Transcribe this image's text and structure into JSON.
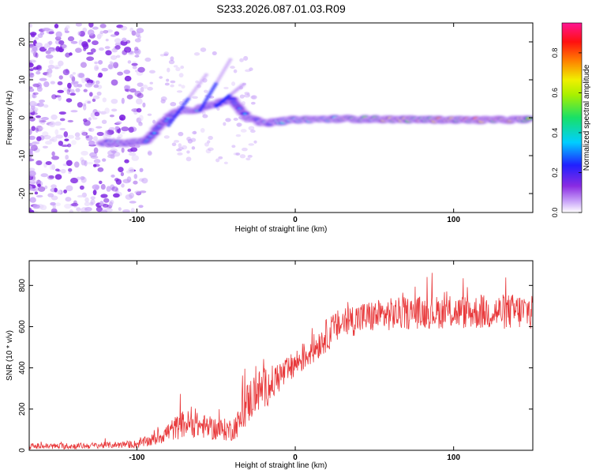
{
  "figure_title": "S233.2026.087.01.03.R09",
  "colors": {
    "snr_line": "#e8383a",
    "colormap": [
      "#ffffff",
      "#c8a2f8",
      "#7b1fe0",
      "#2020ff",
      "#00cfff",
      "#18e068",
      "#f0f000",
      "#ff8000",
      "#ff1010",
      "#ff1493"
    ]
  },
  "chart_data": [
    {
      "type": "heatmap",
      "title": "S233.2026.087.01.03.R09",
      "xlabel": "Height of straight line (km)",
      "ylabel": "Frequency (Hz)",
      "xlim": [
        -168,
        150
      ],
      "ylim": [
        -25,
        25
      ],
      "x_ticks": [
        -100,
        0,
        100
      ],
      "x_tick_labels": [
        "-100",
        "0",
        "100"
      ],
      "y_ticks": [
        -20,
        -10,
        0,
        10,
        20
      ],
      "y_tick_labels": [
        "-20",
        "-10",
        "0",
        "10",
        "20"
      ],
      "colorbar": {
        "label": "Normalized spectral amplitude",
        "range": [
          0,
          0.95
        ],
        "ticks": [
          0.0,
          0.2,
          0.4,
          0.6,
          0.8
        ],
        "tick_labels": [
          "0.0",
          "0.2",
          "0.4",
          "0.6",
          "0.8"
        ]
      },
      "features": {
        "noise_region_x": [
          -168,
          -95
        ],
        "main_trace": [
          {
            "x": -122,
            "freq": -6.5,
            "amp": 0.3
          },
          {
            "x": -110,
            "freq": -6.8,
            "amp": 0.35
          },
          {
            "x": -95,
            "freq": -6.2,
            "amp": 0.3
          },
          {
            "x": -85,
            "freq": -2.0,
            "amp": 0.22
          },
          {
            "x": -75,
            "freq": 2.0,
            "amp": 0.25
          },
          {
            "x": -65,
            "freq": 2.0,
            "amp": 0.35
          },
          {
            "x": -55,
            "freq": 3.0,
            "amp": 0.3
          },
          {
            "x": -40,
            "freq": 5.0,
            "amp": 0.22
          },
          {
            "x": -30,
            "freq": 0.0,
            "amp": 0.25
          },
          {
            "x": -20,
            "freq": -1.5,
            "amp": 0.3
          },
          {
            "x": -10,
            "freq": -1.0,
            "amp": 0.45
          },
          {
            "x": 0,
            "freq": -0.5,
            "amp": 0.5
          },
          {
            "x": 30,
            "freq": -0.3,
            "amp": 0.6
          },
          {
            "x": 80,
            "freq": -0.5,
            "amp": 0.75
          },
          {
            "x": 120,
            "freq": -0.6,
            "amp": 0.85
          },
          {
            "x": 148,
            "freq": -0.5,
            "amp": 0.7
          }
        ]
      }
    },
    {
      "type": "line",
      "xlabel": "Height of straight line (km)",
      "ylabel": "SNR (10 * v/v)",
      "xlim": [
        -168,
        150
      ],
      "ylim": [
        0,
        920
      ],
      "x_ticks": [
        -100,
        0,
        100
      ],
      "x_tick_labels": [
        "-100",
        "0",
        "100"
      ],
      "y_ticks": [
        0,
        200,
        400,
        600,
        800
      ],
      "y_tick_labels": [
        "0",
        "200",
        "400",
        "600",
        "800"
      ],
      "series": [
        {
          "name": "SNR",
          "envelope_x": [
            -168,
            -140,
            -120,
            -100,
            -90,
            -80,
            -70,
            -60,
            -50,
            -40,
            -35,
            -30,
            -25,
            -20,
            -15,
            -10,
            -5,
            0,
            10,
            20,
            30,
            40,
            60,
            80,
            100,
            120,
            150
          ],
          "envelope_y": [
            20,
            20,
            25,
            30,
            50,
            90,
            130,
            120,
            100,
            100,
            140,
            230,
            280,
            300,
            320,
            360,
            380,
            420,
            480,
            560,
            620,
            640,
            660,
            670,
            670,
            670,
            675
          ],
          "noise_amplitude_y": [
            15,
            15,
            15,
            20,
            30,
            50,
            70,
            60,
            55,
            55,
            70,
            110,
            110,
            100,
            90,
            80,
            70,
            70,
            70,
            80,
            80,
            80,
            80,
            80,
            80,
            85,
            90
          ]
        }
      ]
    }
  ]
}
